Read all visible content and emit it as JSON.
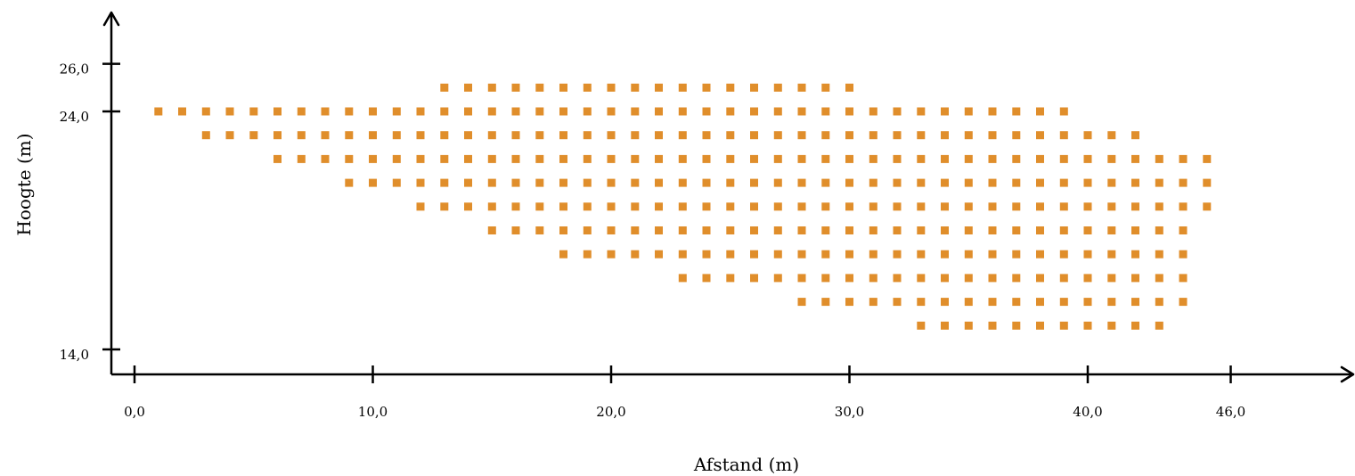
{
  "chart_data": {
    "type": "scatter",
    "xlabel": "Afstand (m)",
    "ylabel": "Hoogte (m)",
    "x_ticks": [
      {
        "value": 0,
        "label": "0,0"
      },
      {
        "value": 10,
        "label": "10,0"
      },
      {
        "value": 20,
        "label": "20,0"
      },
      {
        "value": 30,
        "label": "30,0"
      },
      {
        "value": 40,
        "label": "40,0"
      },
      {
        "value": 46,
        "label": "46,0"
      }
    ],
    "y_ticks": [
      {
        "value": 14,
        "label": "14,0"
      },
      {
        "value": 24,
        "label": "24,0"
      },
      {
        "value": 26,
        "label": "26,0"
      }
    ],
    "xlim": [
      -1,
      51
    ],
    "ylim": [
      13,
      27
    ],
    "grid": false,
    "point_color": "#E08E2B",
    "rows": [
      {
        "y": 25,
        "x_from": 13,
        "x_to": 30
      },
      {
        "y": 24,
        "x_from": 1,
        "x_to": 39
      },
      {
        "y": 23,
        "x_from": 3,
        "x_to": 42
      },
      {
        "y": 22,
        "x_from": 6,
        "x_to": 45
      },
      {
        "y": 21,
        "x_from": 9,
        "x_to": 45
      },
      {
        "y": 20,
        "x_from": 12,
        "x_to": 45
      },
      {
        "y": 19,
        "x_from": 15,
        "x_to": 44
      },
      {
        "y": 18,
        "x_from": 18,
        "x_to": 44
      },
      {
        "y": 17,
        "x_from": 23,
        "x_to": 44
      },
      {
        "y": 16,
        "x_from": 28,
        "x_to": 44
      },
      {
        "y": 15,
        "x_from": 33,
        "x_to": 43
      }
    ]
  }
}
